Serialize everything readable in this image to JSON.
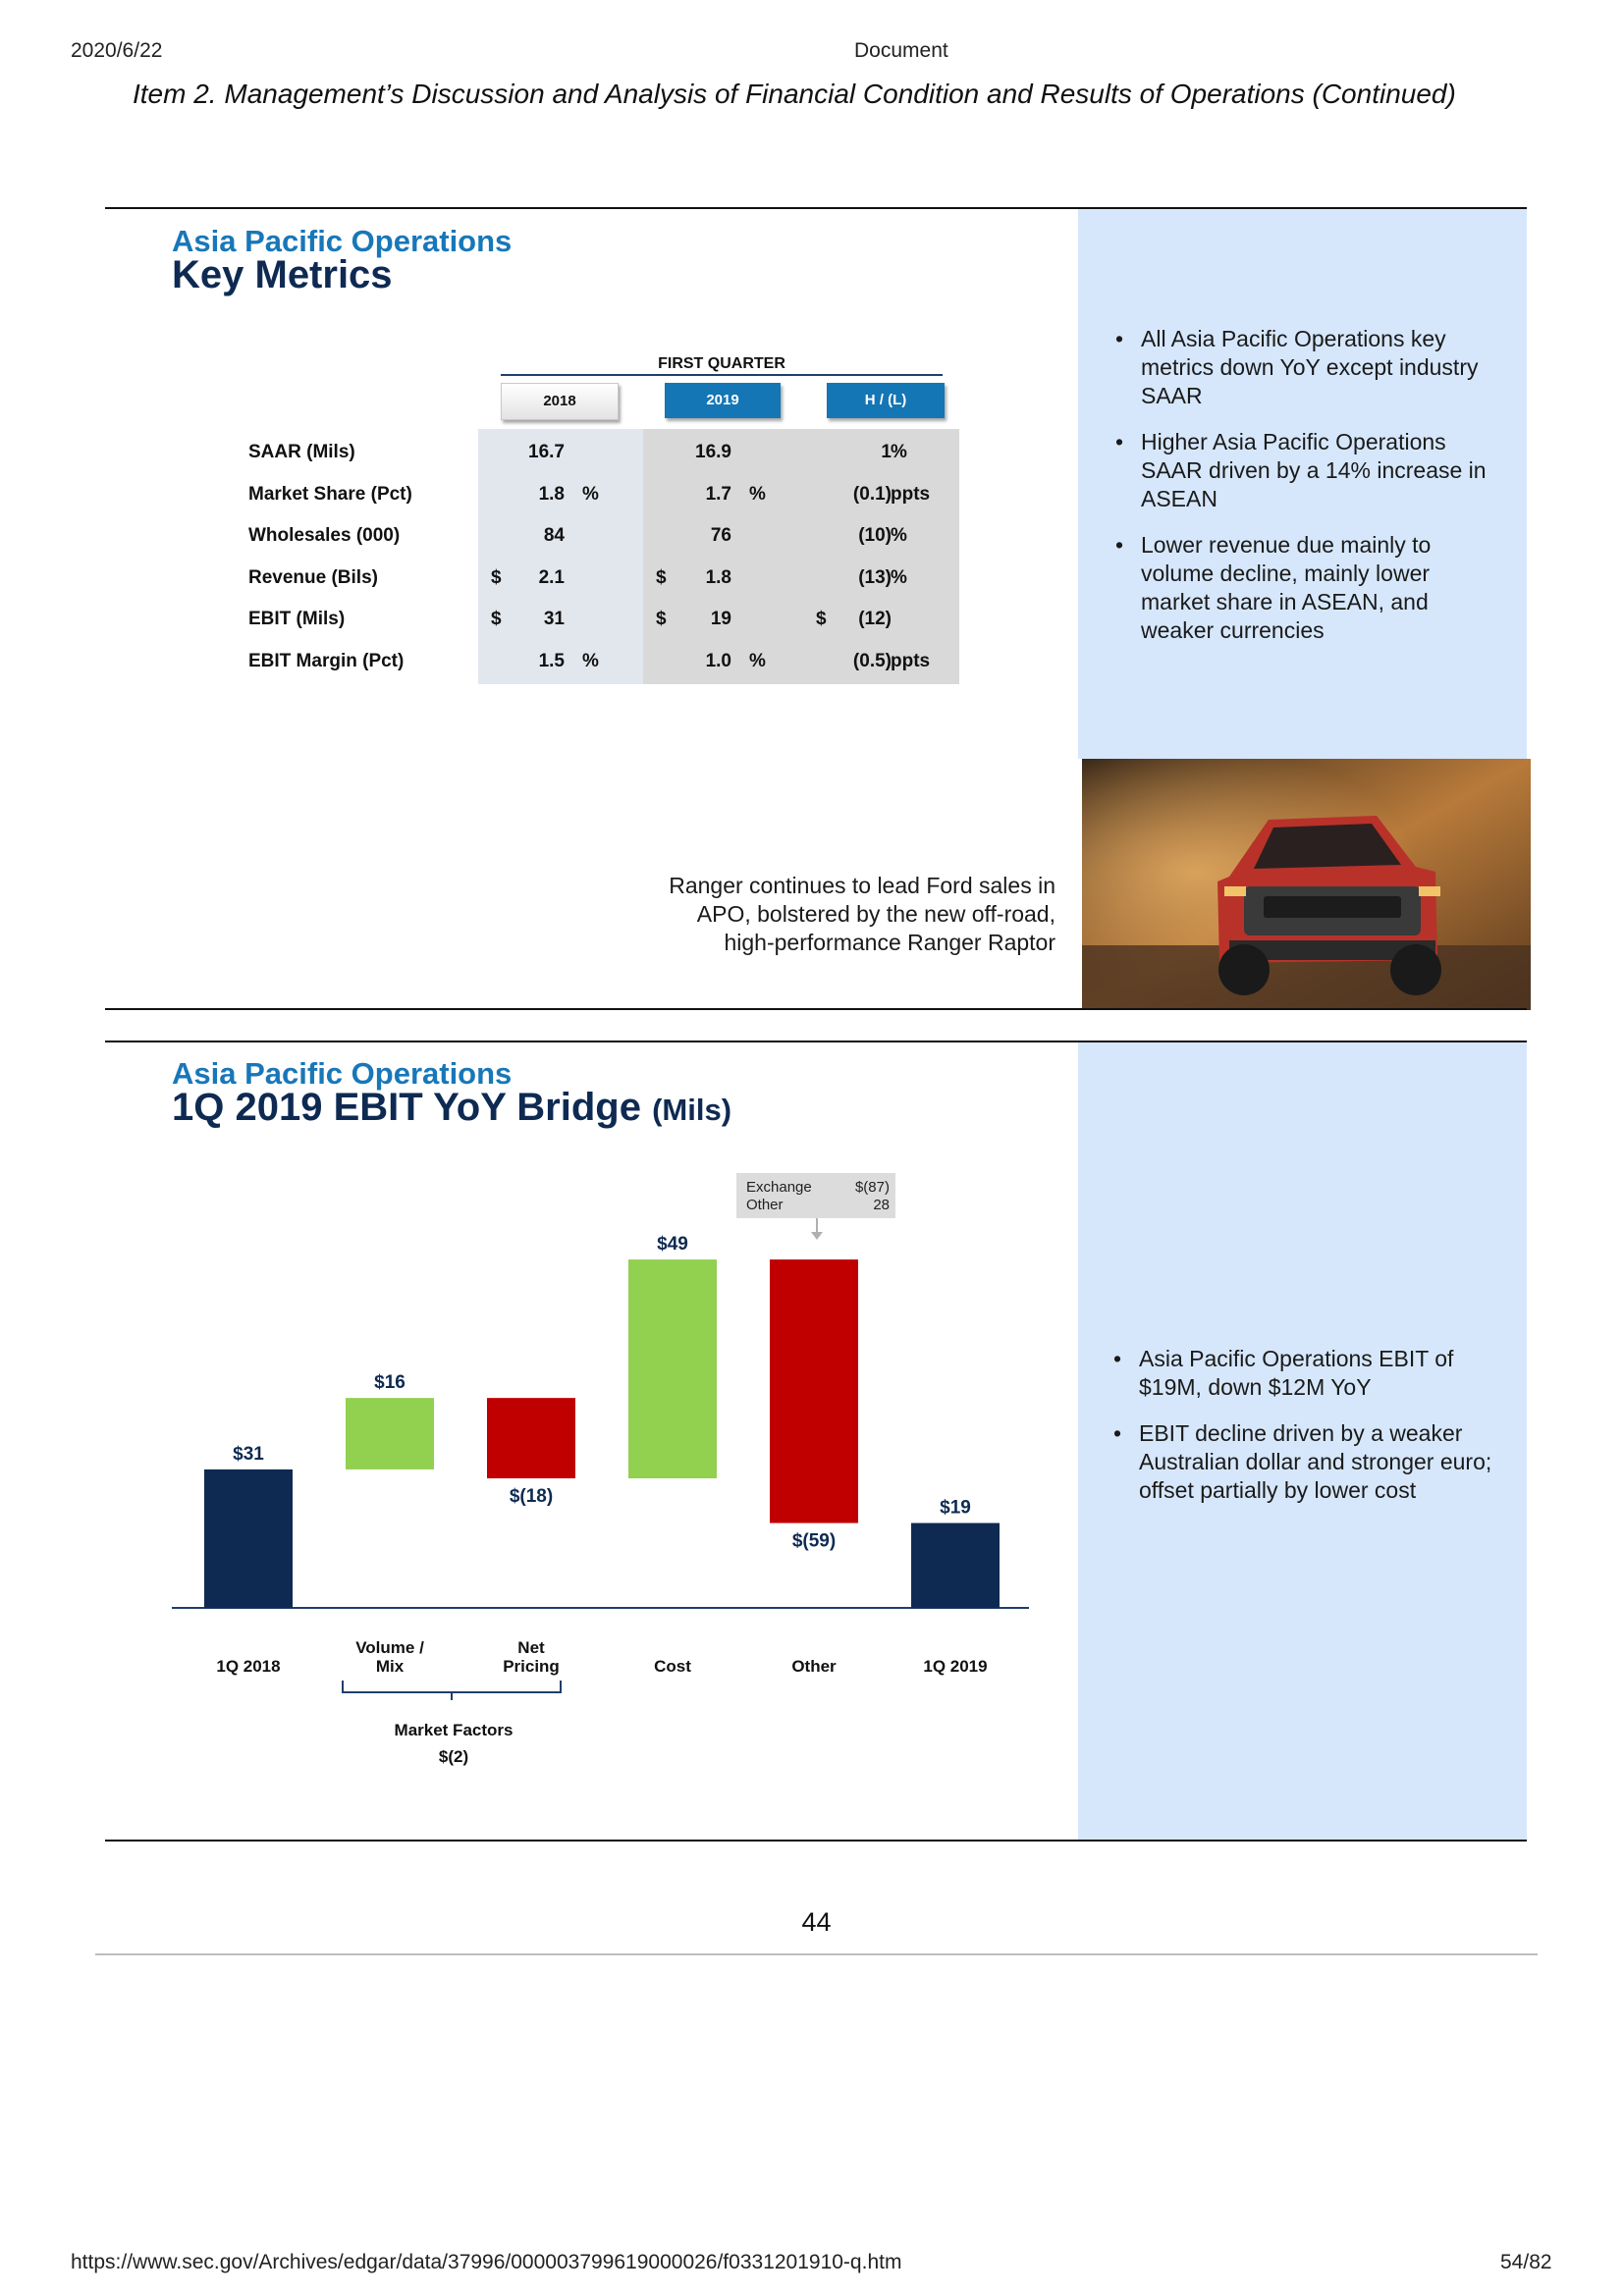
{
  "header": {
    "date": "2020/6/22",
    "doc_title": "Document",
    "item_title": "Item 2. Management’s Discussion and Analysis of Financial Condition and Results of Operations (Continued)"
  },
  "key_metrics": {
    "section_label": "Asia Pacific Operations",
    "title": "Key Metrics",
    "period_label": "FIRST QUARTER",
    "columns": [
      "2018",
      "2019",
      "H / (L)"
    ],
    "rows": [
      {
        "label": "SAAR (Mils)",
        "c2018_cur": "",
        "c2018": "16.7",
        "c2018_unit": "",
        "c2019_cur": "",
        "c2019": "16.9",
        "c2019_unit": "",
        "chg_cur": "",
        "chg": "1",
        "chg_unit": "%"
      },
      {
        "label": "Market Share (Pct)",
        "c2018_cur": "",
        "c2018": "1.8",
        "c2018_unit": "%",
        "c2019_cur": "",
        "c2019": "1.7",
        "c2019_unit": "%",
        "chg_cur": "",
        "chg": "(0.1)",
        "chg_unit": "ppts"
      },
      {
        "label": "Wholesales (000)",
        "c2018_cur": "",
        "c2018": "84",
        "c2018_unit": "",
        "c2019_cur": "",
        "c2019": "76",
        "c2019_unit": "",
        "chg_cur": "",
        "chg": "(10)",
        "chg_unit": "%"
      },
      {
        "label": "Revenue (Bils)",
        "c2018_cur": "$",
        "c2018": "2.1",
        "c2018_unit": "",
        "c2019_cur": "$",
        "c2019": "1.8",
        "c2019_unit": "",
        "chg_cur": "",
        "chg": "(13)",
        "chg_unit": "%"
      },
      {
        "label": "EBIT (Mils)",
        "c2018_cur": "$",
        "c2018": "31",
        "c2018_unit": "",
        "c2019_cur": "$",
        "c2019": "19",
        "c2019_unit": "",
        "chg_cur": "$",
        "chg": "(12)",
        "chg_unit": ""
      },
      {
        "label": "EBIT Margin (Pct)",
        "c2018_cur": "",
        "c2018": "1.5",
        "c2018_unit": "%",
        "c2019_cur": "",
        "c2019": "1.0",
        "c2019_unit": "%",
        "chg_cur": "",
        "chg": "(0.5)",
        "chg_unit": "ppts"
      }
    ],
    "bullets": [
      "All Asia Pacific Operations key metrics down YoY except industry SAAR",
      "Higher Asia Pacific Operations SAAR driven by a 14% increase in ASEAN",
      "Lower revenue due mainly to volume decline, mainly lower market share in ASEAN, and weaker currencies"
    ],
    "caption": [
      "Ranger continues to lead Ford sales in",
      "APO, bolstered by the new off-road,",
      "high-performance Ranger Raptor"
    ]
  },
  "bridge": {
    "section_label": "Asia Pacific Operations",
    "title": "1Q 2019 EBIT YoY Bridge",
    "title_units": "(Mils)",
    "bullets": [
      "Asia Pacific Operations EBIT of $19M, down $12M YoY",
      "EBIT decline driven by a weaker Australian dollar and stronger euro; offset partially by lower cost"
    ],
    "callout": [
      {
        "label": "Exchange",
        "value": "$(87)"
      },
      {
        "label": "Other",
        "value": "28"
      }
    ],
    "market_factors_label": "Market Factors",
    "market_factors_value": "$(2)"
  },
  "chart_data": {
    "type": "bar",
    "subtype": "waterfall",
    "categories": [
      "1Q 2018",
      "Volume / Mix",
      "Net Pricing",
      "Cost",
      "Other",
      "1Q 2019"
    ],
    "values": [
      31,
      16,
      -18,
      49,
      -59,
      19
    ],
    "value_labels": [
      "$31",
      "$16",
      "$(18)",
      "$49",
      "$(59)",
      "$19"
    ],
    "kinds": [
      "total",
      "delta",
      "delta",
      "delta",
      "delta",
      "total"
    ],
    "colors": {
      "total": "#0e2a52",
      "increase": "#92d050",
      "decrease": "#c00000"
    },
    "ylim": [
      0,
      80
    ]
  },
  "page": {
    "number": "44",
    "url": "https://www.sec.gov/Archives/edgar/data/37996/000003799619000026/f0331201910-q.htm",
    "page_count": "54/82"
  }
}
